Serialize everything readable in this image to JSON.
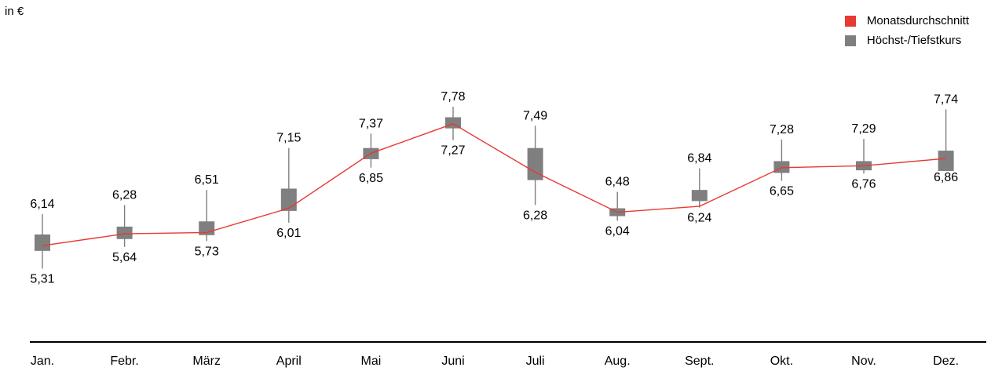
{
  "chart_data": {
    "type": "candlestick",
    "unit_label": "in €",
    "legend": {
      "avg_label": "Monatsdurchschnitt",
      "range_label": "Höchst-/Tiefstkurs"
    },
    "colors": {
      "avg": "#e63a32",
      "range": "#7f7f7f",
      "axis": "#000000"
    },
    "categories": [
      "Jan.",
      "Febr.",
      "März",
      "April",
      "Mai",
      "Juni",
      "Juli",
      "Aug.",
      "Sept.",
      "Okt.",
      "Nov.",
      "Dez."
    ],
    "high": [
      6.14,
      6.28,
      6.51,
      7.15,
      7.37,
      7.78,
      7.49,
      6.48,
      6.84,
      7.28,
      7.29,
      7.74
    ],
    "low": [
      5.31,
      5.64,
      5.73,
      6.01,
      6.85,
      7.27,
      6.28,
      6.04,
      6.24,
      6.65,
      6.76,
      6.86
    ],
    "high_labels": [
      "6,14",
      "6,28",
      "6,51",
      "7,15",
      "7,37",
      "7,78",
      "7,49",
      "6,48",
      "6,84",
      "7,28",
      "7,29",
      "7,74"
    ],
    "low_labels": [
      "5,31",
      "5,64",
      "5,73",
      "6,01",
      "6,85",
      "7,27",
      "6,28",
      "6,04",
      "6,24",
      "6,65",
      "6,76",
      "6,86"
    ],
    "box_top": [
      5.83,
      5.95,
      6.03,
      6.53,
      7.15,
      7.62,
      7.15,
      6.23,
      6.51,
      6.95,
      6.95,
      7.11
    ],
    "box_bottom": [
      5.58,
      5.76,
      5.82,
      6.19,
      6.98,
      7.45,
      6.66,
      6.11,
      6.34,
      6.77,
      6.81,
      6.8
    ],
    "monthly_average": [
      5.66,
      5.84,
      5.86,
      6.23,
      7.07,
      7.52,
      6.78,
      6.17,
      6.26,
      6.85,
      6.88,
      6.99
    ],
    "y_range": [
      4.5,
      8.5
    ]
  }
}
